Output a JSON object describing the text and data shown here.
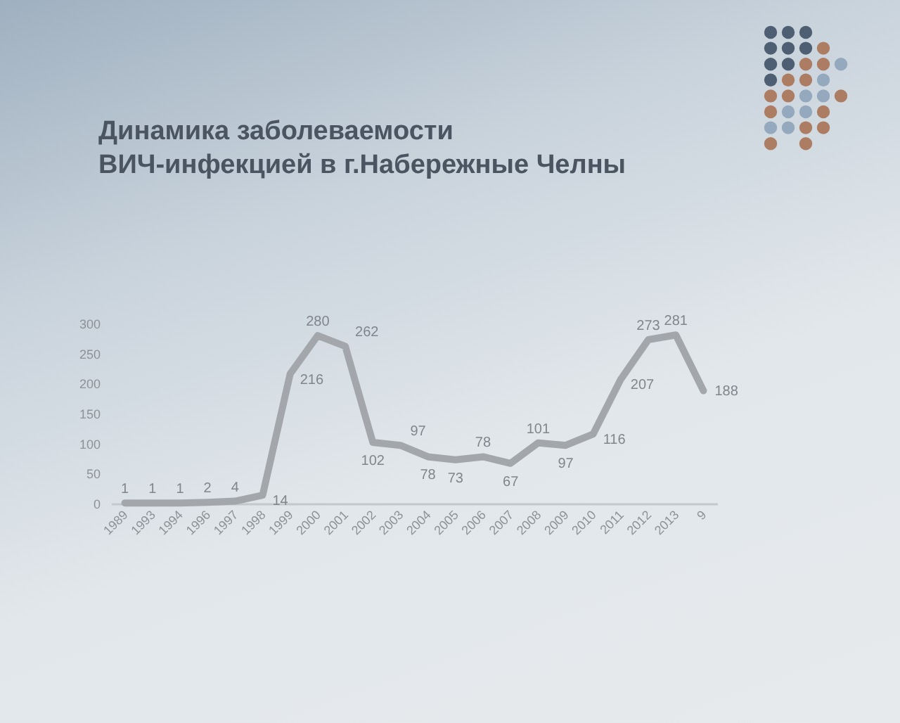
{
  "chart_data": {
    "type": "line",
    "title": "Динамика заболеваемости\nВИЧ-инфекцией в г.Набережные Челны",
    "categories": [
      "1989",
      "1993",
      "1994",
      "1996",
      "1997",
      "1998",
      "1999",
      "2000",
      "2001",
      "2002",
      "2003",
      "2004",
      "2005",
      "2006",
      "2007",
      "2008",
      "2009",
      "2010",
      "2011",
      "2012",
      "2013",
      "9"
    ],
    "series": [
      {
        "color": "#a3a7ab",
        "values": [
          1,
          1,
          1,
          2,
          4,
          14,
          216,
          280,
          262,
          102,
          97,
          78,
          73,
          78,
          67,
          101,
          97,
          116,
          207,
          273,
          281,
          188
        ]
      }
    ],
    "ylim": [
      0,
      300
    ],
    "yticks": [
      0,
      50,
      100,
      150,
      200,
      250,
      300
    ],
    "grid": false,
    "data_labels": true,
    "line_style": "solid"
  }
}
